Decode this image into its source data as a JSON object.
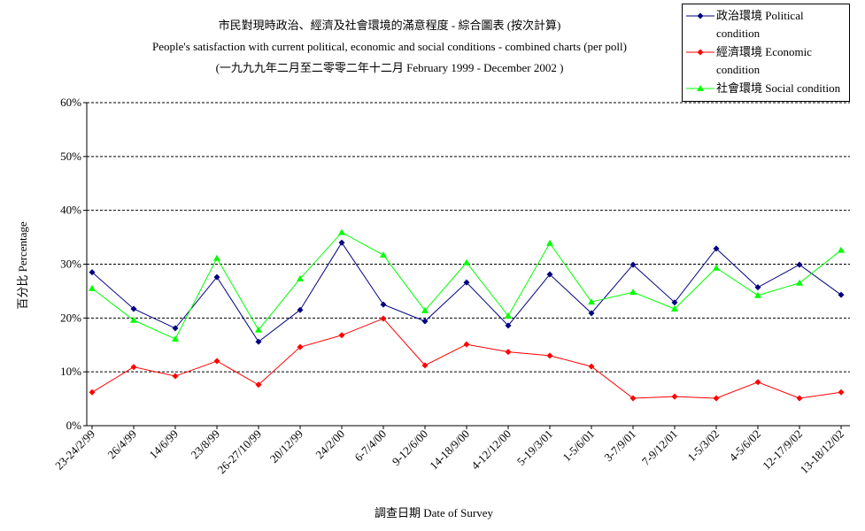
{
  "chart_data": {
    "type": "line",
    "title_lines": [
      "市民對現時政治、經濟及社會環境的滿意程度 - 綜合圖表 (按次計算)",
      "People's satisfaction with current political, economic and social conditions - combined charts  (per poll)",
      "(一九九九年二月至二零零二年十二月 February 1999 - December 2002 )"
    ],
    "y_label": "百分比 Percentage",
    "x_label": "調查日期 Date of Survey",
    "categories": [
      "23-24/2/99",
      "26/4/99",
      "14/6/99",
      "23/8/99",
      "26-27/10/99",
      "20/12/99",
      "24/2/00",
      "6-7/4/00",
      "9-12/6/00",
      "14-18/9/00",
      "4-12/12/00",
      "5-19/3/01",
      "1-5/6/01",
      "3-7/9/01",
      "7-9/12/01",
      "1-5/3/02",
      "4-5/6/02",
      "12-17/9/02",
      "13-18/12/02"
    ],
    "series": [
      {
        "name": "政治環境 Political condition",
        "color": "#000080",
        "marker": "diamond",
        "values": [
          28.5,
          21.7,
          18.1,
          27.6,
          15.6,
          21.5,
          34.0,
          22.5,
          19.4,
          26.6,
          18.6,
          28.1,
          20.9,
          29.9,
          22.9,
          32.9,
          25.7,
          29.9,
          24.3
        ]
      },
      {
        "name": "經濟環境 Economic condition",
        "color": "#ff0000",
        "marker": "diamond",
        "values": [
          6.2,
          10.9,
          9.2,
          12.0,
          7.6,
          14.6,
          16.8,
          19.9,
          11.2,
          15.1,
          13.7,
          13.0,
          11.0,
          5.1,
          5.4,
          5.1,
          8.1,
          5.1,
          6.2
        ]
      },
      {
        "name": "社會環境 Social condition",
        "color": "#00ff00",
        "marker": "triangle",
        "values": [
          25.5,
          19.6,
          16.1,
          31.1,
          17.8,
          27.3,
          35.9,
          31.7,
          21.4,
          30.3,
          20.4,
          33.9,
          23.0,
          24.8,
          21.7,
          29.3,
          24.2,
          26.5,
          32.6
        ]
      }
    ],
    "ylim": [
      0,
      60
    ],
    "yticks": [
      {
        "value": 0,
        "label": "0%"
      },
      {
        "value": 10,
        "label": "10%"
      },
      {
        "value": 20,
        "label": "20%"
      },
      {
        "value": 30,
        "label": "30%"
      },
      {
        "value": 40,
        "label": "40%"
      },
      {
        "value": 50,
        "label": "50%"
      },
      {
        "value": 60,
        "label": "60%"
      }
    ],
    "grid": true,
    "legend": "top-right"
  }
}
